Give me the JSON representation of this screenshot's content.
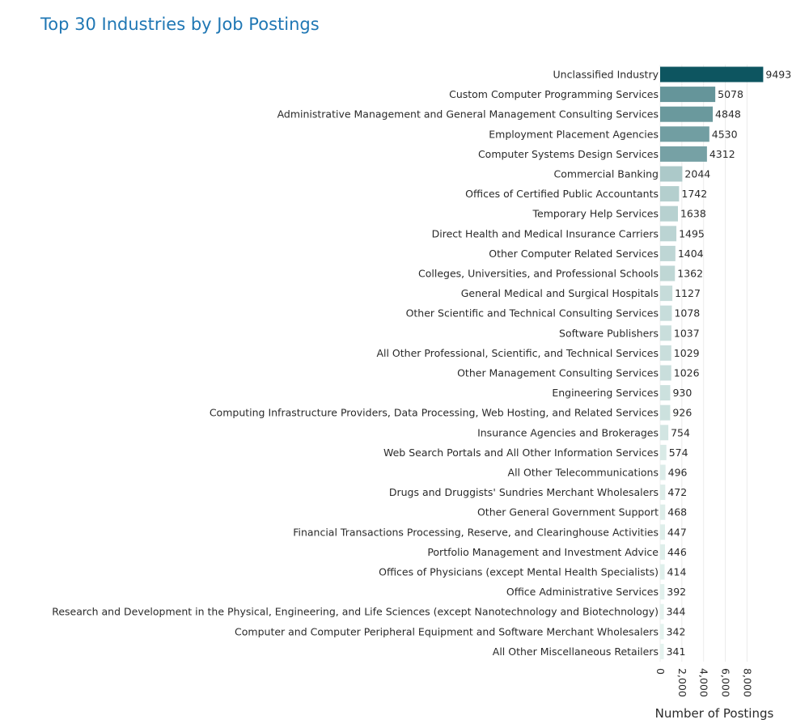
{
  "chart_data": {
    "type": "bar",
    "orientation": "horizontal",
    "title": "Top 30 Industries by Job Postings",
    "xlabel": "Number of Postings",
    "ylabel": "",
    "xlim": [
      0,
      9493
    ],
    "x_ticks": [
      0,
      2000,
      4000,
      6000,
      8000
    ],
    "x_tick_labels": [
      "0",
      "2,000",
      "4,000",
      "6,000",
      "8,000"
    ],
    "grid": true,
    "legend": "none",
    "color_scale": [
      "#e4f2ee",
      "#0d5560"
    ],
    "categories": [
      "Unclassified Industry",
      "Custom Computer Programming Services",
      "Administrative Management and General Management Consulting Services",
      "Employment Placement Agencies",
      "Computer Systems Design Services",
      "Commercial Banking",
      "Offices of Certified Public Accountants",
      "Temporary Help Services",
      "Direct Health and Medical Insurance Carriers",
      "Other Computer Related Services",
      "Colleges, Universities, and Professional Schools",
      "General Medical and Surgical Hospitals",
      "Other Scientific and Technical Consulting Services",
      "Software Publishers",
      "All Other Professional, Scientific, and Technical Services",
      "Other Management Consulting Services",
      "Engineering Services",
      "Computing Infrastructure Providers, Data Processing, Web Hosting, and Related Services",
      "Insurance Agencies and Brokerages",
      "Web Search Portals and All Other Information Services",
      "All Other Telecommunications",
      "Drugs and Druggists' Sundries Merchant Wholesalers",
      "Other General Government Support",
      "Financial Transactions Processing, Reserve, and Clearinghouse Activities",
      "Portfolio Management and Investment Advice",
      "Offices of Physicians (except Mental Health Specialists)",
      "Office Administrative Services",
      "Research and Development in the Physical, Engineering, and Life Sciences (except Nanotechnology and Biotechnology)",
      "Computer and Computer Peripheral Equipment and Software Merchant Wholesalers",
      "All Other Miscellaneous Retailers"
    ],
    "values": [
      9493,
      5078,
      4848,
      4530,
      4312,
      2044,
      1742,
      1638,
      1495,
      1404,
      1362,
      1127,
      1078,
      1037,
      1029,
      1026,
      930,
      926,
      754,
      574,
      496,
      472,
      468,
      447,
      446,
      414,
      392,
      344,
      342,
      341
    ]
  }
}
